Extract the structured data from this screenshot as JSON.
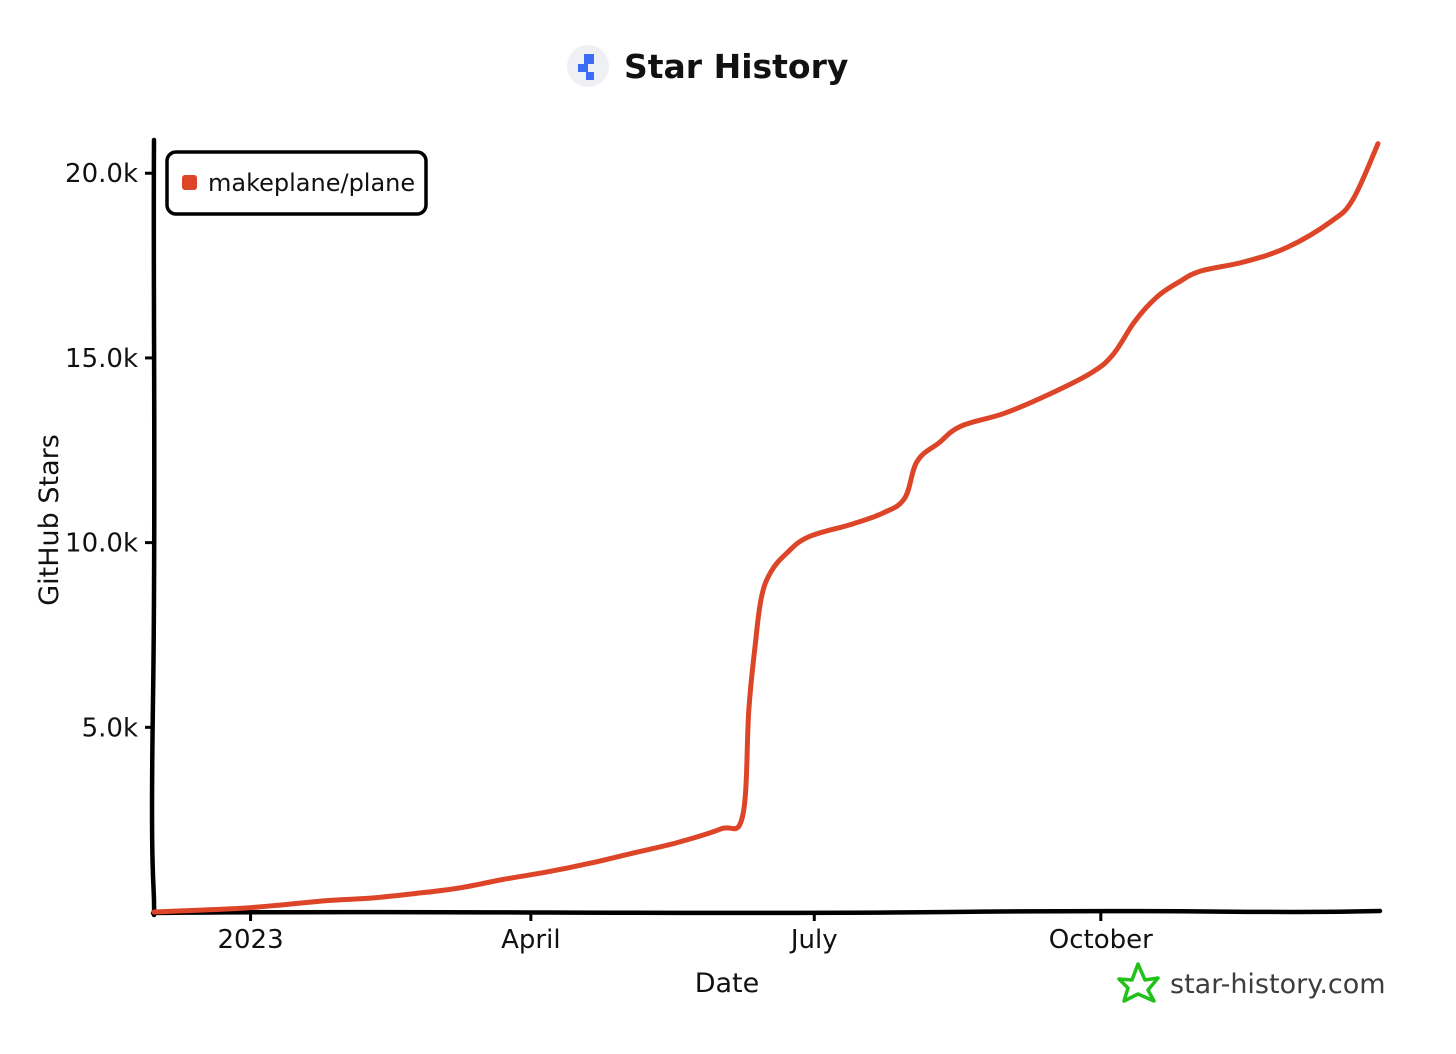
{
  "header": {
    "title": "Star History"
  },
  "watermark": {
    "text": "star-history.com"
  },
  "colors": {
    "series": "#dd4528",
    "axis": "#000000",
    "logo_blue": "#3b6cf6",
    "logo_bg": "#eef0f4",
    "watermark_icon": "#22c11a"
  },
  "chart_data": {
    "type": "line",
    "title": "Star History",
    "xlabel": "Date",
    "ylabel": "GitHub Stars",
    "x_axis_type": "date",
    "xlim": [
      "2022-12-01",
      "2023-12-29"
    ],
    "ylim": [
      0,
      20900
    ],
    "grid": false,
    "legend_position": "top-left",
    "x_ticks": [
      {
        "value": "2023-01-01",
        "label": "2023"
      },
      {
        "value": "2023-04-01",
        "label": "April"
      },
      {
        "value": "2023-07-01",
        "label": "July"
      },
      {
        "value": "2023-10-01",
        "label": "October"
      }
    ],
    "y_ticks": [
      {
        "value": 5000,
        "label": "5.0k"
      },
      {
        "value": 10000,
        "label": "10.0k"
      },
      {
        "value": 15000,
        "label": "15.0k"
      },
      {
        "value": 20000,
        "label": "20.0k"
      }
    ],
    "series": [
      {
        "name": "makeplane/plane",
        "color": "#dd4528",
        "points": [
          [
            "2022-12-01",
            0
          ],
          [
            "2022-12-15",
            50
          ],
          [
            "2022-12-29",
            100
          ],
          [
            "2023-01-12",
            200
          ],
          [
            "2023-01-26",
            310
          ],
          [
            "2023-02-09",
            380
          ],
          [
            "2023-02-23",
            500
          ],
          [
            "2023-03-09",
            650
          ],
          [
            "2023-03-23",
            880
          ],
          [
            "2023-04-06",
            1080
          ],
          [
            "2023-04-20",
            1320
          ],
          [
            "2023-05-04",
            1600
          ],
          [
            "2023-05-18",
            1880
          ],
          [
            "2023-06-01",
            2250
          ],
          [
            "2023-06-08",
            2600
          ],
          [
            "2023-06-10",
            5500
          ],
          [
            "2023-06-12",
            7200
          ],
          [
            "2023-06-14",
            8500
          ],
          [
            "2023-06-17",
            9200
          ],
          [
            "2023-06-22",
            9700
          ],
          [
            "2023-06-29",
            10150
          ],
          [
            "2023-07-13",
            10500
          ],
          [
            "2023-07-23",
            10800
          ],
          [
            "2023-07-30",
            11200
          ],
          [
            "2023-08-03",
            12200
          ],
          [
            "2023-08-10",
            12700
          ],
          [
            "2023-08-17",
            13150
          ],
          [
            "2023-08-31",
            13500
          ],
          [
            "2023-09-14",
            14000
          ],
          [
            "2023-09-28",
            14600
          ],
          [
            "2023-10-05",
            15100
          ],
          [
            "2023-10-12",
            16000
          ],
          [
            "2023-10-19",
            16650
          ],
          [
            "2023-10-26",
            17050
          ],
          [
            "2023-11-02",
            17350
          ],
          [
            "2023-11-16",
            17600
          ],
          [
            "2023-11-30",
            18000
          ],
          [
            "2023-12-14",
            18700
          ],
          [
            "2023-12-21",
            19300
          ],
          [
            "2023-12-29",
            20800
          ]
        ]
      }
    ]
  }
}
